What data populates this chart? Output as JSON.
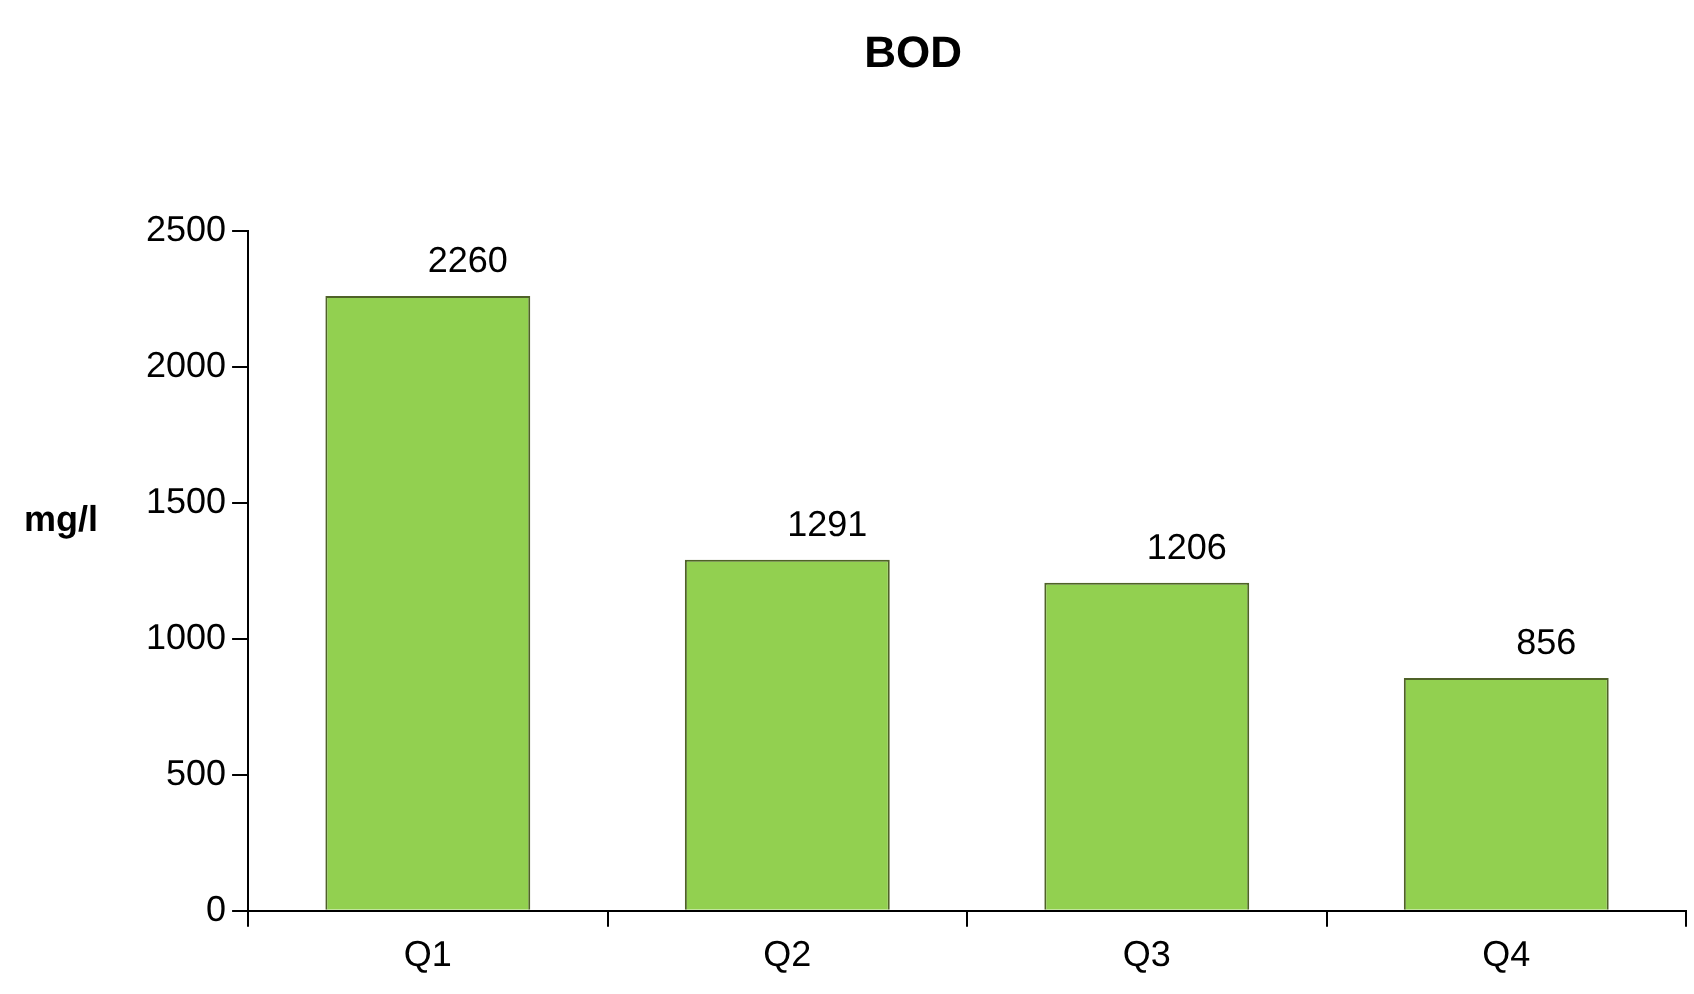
{
  "chart_data": {
    "type": "bar",
    "title": "BOD",
    "ylabel": "mg/l",
    "categories": [
      "Q1",
      "Q2",
      "Q3",
      "Q4"
    ],
    "values": [
      2260,
      1291,
      1206,
      856
    ],
    "color": "#92d050",
    "ylim": [
      0,
      2500
    ],
    "yticks": [
      0,
      500,
      1000,
      1500,
      2000,
      2500
    ],
    "grid": false,
    "legend": false,
    "data_labels": true
  }
}
